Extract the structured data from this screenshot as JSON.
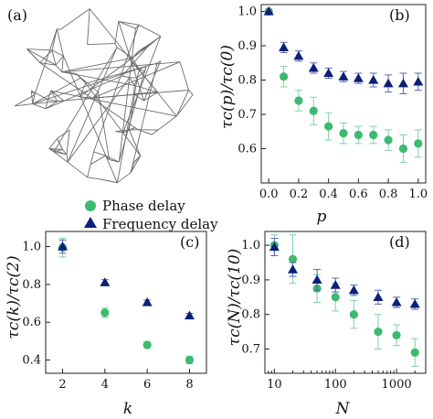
{
  "colors": {
    "phase": "#3cba6f",
    "frequency": "#0c1f7a",
    "phase_err": "#7fd1a2",
    "freq_err": "#5a66b0"
  },
  "panel_a": {
    "label": "(a)",
    "legend": {
      "phase": "Phase delay",
      "frequency": "Frequency delay"
    }
  },
  "chart_data": [
    {
      "id": "b",
      "panel_label": "(b)",
      "type": "scatter",
      "xlabel": "p",
      "ylabel": "τc(p)/τc(0)",
      "xlim": [
        -0.05,
        1.05
      ],
      "ylim": [
        0.5,
        1.02
      ],
      "xticks": [
        0.0,
        0.2,
        0.4,
        0.6,
        0.8,
        1.0
      ],
      "xtick_labels": [
        "0.0",
        "0.2",
        "0.4",
        "0.6",
        "0.8",
        "1.0"
      ],
      "yticks": [
        0.6,
        0.7,
        0.8,
        0.9,
        1.0
      ],
      "ytick_labels": [
        "0.6",
        "0.7",
        "0.8",
        "0.9",
        "1.0"
      ],
      "log_x": false,
      "series": [
        {
          "name": "Phase delay",
          "marker": "circle",
          "x": [
            0.0,
            0.1,
            0.2,
            0.3,
            0.4,
            0.5,
            0.6,
            0.7,
            0.8,
            0.9,
            1.0
          ],
          "y": [
            1.0,
            0.81,
            0.74,
            0.71,
            0.665,
            0.645,
            0.64,
            0.64,
            0.625,
            0.6,
            0.615
          ],
          "err": [
            0.0,
            0.03,
            0.03,
            0.04,
            0.04,
            0.03,
            0.025,
            0.025,
            0.03,
            0.04,
            0.04
          ]
        },
        {
          "name": "Frequency delay",
          "marker": "triangle",
          "x": [
            0.0,
            0.1,
            0.2,
            0.3,
            0.4,
            0.5,
            0.6,
            0.7,
            0.8,
            0.9,
            1.0
          ],
          "y": [
            1.0,
            0.895,
            0.87,
            0.835,
            0.82,
            0.81,
            0.805,
            0.8,
            0.79,
            0.79,
            0.795
          ],
          "err": [
            0.0,
            0.015,
            0.015,
            0.015,
            0.015,
            0.015,
            0.015,
            0.02,
            0.025,
            0.03,
            0.025
          ]
        }
      ]
    },
    {
      "id": "c",
      "panel_label": "(c)",
      "type": "scatter",
      "xlabel": "k",
      "ylabel": "τc(k)/τc(2)",
      "xlim": [
        1.2,
        8.8
      ],
      "ylim": [
        0.33,
        1.08
      ],
      "xticks": [
        2,
        4,
        6,
        8
      ],
      "xtick_labels": [
        "2",
        "4",
        "6",
        "8"
      ],
      "yticks": [
        0.4,
        0.6,
        0.8,
        1.0
      ],
      "ytick_labels": [
        "0.4",
        "0.6",
        "0.8",
        "1.0"
      ],
      "log_x": false,
      "series": [
        {
          "name": "Phase delay",
          "marker": "circle",
          "x": [
            2,
            4,
            6,
            8
          ],
          "y": [
            0.995,
            0.65,
            0.48,
            0.4
          ],
          "err": [
            0.05,
            0.025,
            0.015,
            0.02
          ]
        },
        {
          "name": "Frequency delay",
          "marker": "triangle",
          "x": [
            2,
            4,
            6,
            8
          ],
          "y": [
            1.0,
            0.81,
            0.705,
            0.635
          ],
          "err": [
            0.035,
            0.015,
            0.012,
            0.012
          ]
        }
      ]
    },
    {
      "id": "d",
      "panel_label": "(d)",
      "type": "scatter",
      "xlabel": "N",
      "ylabel": "τc(N)/τc(10)",
      "xlim": [
        7,
        3000
      ],
      "ylim": [
        0.63,
        1.04
      ],
      "xticks": [
        10,
        100,
        1000
      ],
      "xtick_labels": [
        "10",
        "100",
        "1000"
      ],
      "yticks": [
        0.7,
        0.8,
        0.9,
        1.0
      ],
      "ytick_labels": [
        "0.7",
        "0.8",
        "0.9",
        "1.0"
      ],
      "log_x": true,
      "series": [
        {
          "name": "Phase delay",
          "marker": "circle",
          "x": [
            10,
            20,
            50,
            100,
            200,
            500,
            1000,
            2000
          ],
          "y": [
            1.0,
            0.96,
            0.875,
            0.85,
            0.8,
            0.75,
            0.74,
            0.69
          ],
          "err": [
            0.03,
            0.07,
            0.04,
            0.04,
            0.04,
            0.05,
            0.03,
            0.04
          ]
        },
        {
          "name": "Frequency delay",
          "marker": "triangle",
          "x": [
            10,
            20,
            50,
            100,
            200,
            500,
            1000,
            2000
          ],
          "y": [
            0.995,
            0.93,
            0.9,
            0.885,
            0.87,
            0.85,
            0.835,
            0.83
          ],
          "err": [
            0.025,
            0.02,
            0.03,
            0.02,
            0.015,
            0.02,
            0.015,
            0.015
          ]
        }
      ]
    }
  ]
}
